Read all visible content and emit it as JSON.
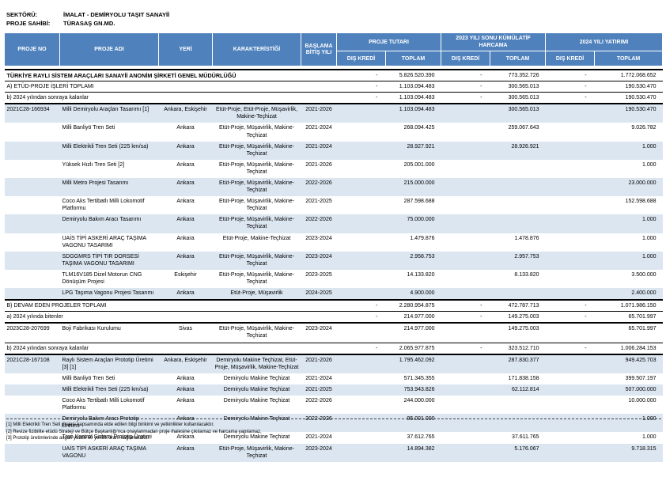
{
  "page": {
    "sector_label": "SEKTÖRÜ:",
    "sector_value": "İMALAT - DEMİRYOLU TAŞIT SANAYİİ",
    "owner_label": "PROJE SAHİBİ:",
    "owner_value": "TÜRASAŞ GN.MD."
  },
  "colors": {
    "header_bg": "#4F81BD",
    "stripe_bg": "#DCE6F1",
    "header_text": "#FFFFFF"
  },
  "table": {
    "columns": {
      "proje_no": "PROJE NO",
      "proje_adi": "PROJE ADI",
      "yeri": "YERİ",
      "karakteristigi": "KARAKTERİSTİĞİ",
      "baslama_bitis_yili": "BAŞLAMA BİTİŞ YILI",
      "groups": [
        {
          "label": "PROJE TUTARI",
          "sub": [
            "DIŞ KREDİ",
            "TOPLAM"
          ]
        },
        {
          "label": "2023 YILI SONU KÜMÜLATİF HARCAMA",
          "sub": [
            "DIŞ KREDİ",
            "TOPLAM"
          ]
        },
        {
          "label": "2024 YILI YATIRIMI",
          "sub": [
            "DIŞ KREDİ",
            "TOPLAM"
          ]
        }
      ]
    },
    "rows": [
      {
        "type": "company",
        "name": "TÜRKİYE RAYLI SİSTEM ARAÇLARI SANAYİİ ANONİM ŞİRKETİ GENEL MÜDÜRLÜĞÜ",
        "values": [
          "-",
          "5.826.520.390",
          "-",
          "773.352.726",
          "-",
          "1.772.068.652"
        ],
        "bt": 2,
        "bb": 1
      },
      {
        "type": "section",
        "name": "A) ETÜD-PROJE İŞLERİ TOPLAMI",
        "values": [
          "-",
          "1.103.094.483",
          "-",
          "300.565.013",
          "-",
          "190.530.470"
        ],
        "bb": 1
      },
      {
        "type": "subsection",
        "name": "b) 2024 yılından sonraya kalanlar",
        "values": [
          "-",
          "1.103.094.483",
          "-",
          "300.565.013",
          "-",
          "190.530.470"
        ],
        "bb": 2
      },
      {
        "type": "project",
        "no": "2021C28-166934",
        "name": "Milli Demiryolu Araçları Tasarımı  [1]",
        "place": "Ankara,  Eskişehir",
        "character": "Etüt-Proje, Etüt-Proje, Müşavirlik, Makine-Teçhizat",
        "years": "2021-2026",
        "values": [
          "",
          "1.103.094.483",
          "",
          "300.565.013",
          "",
          "190.530.470"
        ],
        "stripe": true
      },
      {
        "type": "project",
        "no": "",
        "name": "Milli Banliyö Tren Seti",
        "place": "Ankara",
        "character": "Etüt-Proje, Müşavirlik, Makine-Teçhizat",
        "years": "2021-2024",
        "values": [
          "",
          "268.094.425",
          "",
          "259.067.643",
          "",
          "9.026.782"
        ],
        "stripe": false
      },
      {
        "type": "project",
        "no": "",
        "name": "Milli Elektrikli Tren Seti (225 km/sa)",
        "place": "Ankara",
        "character": "Etüt-Proje, Müşavirlik, Makine-Teçhizat",
        "years": "2021-2024",
        "values": [
          "",
          "28.927.921",
          "",
          "28.926.921",
          "",
          "1.000"
        ],
        "stripe": true
      },
      {
        "type": "project",
        "no": "",
        "name": "Yüksek Hızlı Tren Seti [2]",
        "place": "Ankara",
        "character": "Etüt-Proje, Müşavirlik, Makine-Teçhizat",
        "years": "2021-2026",
        "values": [
          "",
          "205.001.000",
          "",
          "",
          "",
          "1.000"
        ],
        "stripe": false
      },
      {
        "type": "project",
        "no": "",
        "name": "Milli Metro Projesi Tasarımı",
        "place": "Ankara",
        "character": "Etüt-Proje, Müşavirlik, Makine-Teçhizat",
        "years": "2022-2026",
        "values": [
          "",
          "215.000.000",
          "",
          "",
          "",
          "23.000.000"
        ],
        "stripe": true
      },
      {
        "type": "project",
        "no": "",
        "name": "Coco Aks Tertibatlı Milli Lokomotif Platformu",
        "place": "Ankara",
        "character": "Etüt-Proje, Müşavirlik, Makine-Teçhizat",
        "years": "2021-2025",
        "values": [
          "",
          "287.598.688",
          "",
          "",
          "",
          "152.598.688"
        ],
        "stripe": false
      },
      {
        "type": "project",
        "no": "",
        "name": "Demiryolu Bakım Aracı Tasarımı",
        "place": "Ankara",
        "character": "Etüt-Proje, Müşavirlik, Makine-Teçhizat",
        "years": "2022-2026",
        "values": [
          "",
          "75.000.000",
          "",
          "",
          "",
          "1.000"
        ],
        "stripe": true
      },
      {
        "type": "project",
        "no": "",
        "name": "UAİS TİPİ ASKERİ ARAÇ TAŞIMA VAGONU TASARIMI",
        "place": "Ankara",
        "character": "Etüt-Proje, Makine-Teçhizat",
        "years": "2023-2024",
        "values": [
          "",
          "1.479.876",
          "",
          "1.478.876",
          "",
          "1.000"
        ],
        "stripe": false
      },
      {
        "type": "project",
        "no": "",
        "name": "SDGGMRS TİPİ TIR DORSESİ TAŞIMA VAGONU TASARIMI",
        "place": "Ankara",
        "character": "Etüt-Proje, Müşavirlik, Makine-Teçhizat",
        "years": "2023-2024",
        "values": [
          "",
          "2.958.753",
          "",
          "2.957.753",
          "",
          "1.000"
        ],
        "stripe": true
      },
      {
        "type": "project",
        "no": "",
        "name": "TLM16V185 Dizel Motorun CNG Dönüşüm Projesi",
        "place": "Eskişehir",
        "character": "Etüt-Proje, Müşavirlik, Makine-Teçhizat",
        "years": "2023-2025",
        "values": [
          "",
          "14.133.820",
          "",
          "8.133.820",
          "",
          "3.500.000"
        ],
        "stripe": false
      },
      {
        "type": "project",
        "no": "",
        "name": "LPG Taşıma Vagonu Projesi Tasarımı",
        "place": "Ankara",
        "character": "Etüt-Proje, Müşavirlik",
        "years": "2024-2025",
        "values": [
          "",
          "4.900.000",
          "",
          "",
          "",
          "2.400.000"
        ],
        "stripe": true
      },
      {
        "type": "section",
        "name": "B) DEVAM EDEN PROJELER TOPLAMI",
        "values": [
          "-",
          "2.280.954.875",
          "-",
          "472.787.713",
          "-",
          "1.071.986.150"
        ],
        "bt": 2,
        "bb": 1
      },
      {
        "type": "subsection",
        "name": "a) 2024 yılında bitenler",
        "values": [
          "-",
          "214.977.000",
          "-",
          "149.275.003",
          "-",
          "65.701.997"
        ],
        "bb": 2
      },
      {
        "type": "project",
        "no": "2023C28-207699",
        "name": "Boji Fabrikası Kurulumu",
        "place": "Sivas",
        "character": "Etüt-Proje, Müşavirlik, Makine-Teçhizat",
        "years": "2023-2024",
        "values": [
          "",
          "214.977.000",
          "",
          "149.275.003",
          "",
          "65.701.997"
        ],
        "stripe": false
      },
      {
        "type": "subsection",
        "name": "b) 2024 yılından sonraya kalanlar",
        "values": [
          "-",
          "2.065.977.875",
          "-",
          "323.512.710",
          "-",
          "1.006.284.153"
        ],
        "bt": 1,
        "bb": 2
      },
      {
        "type": "project",
        "no": "2021C28-167108",
        "name": "Raylı Sistem Araçları Prototip Üretimi  [3] [1]",
        "place": "Ankara,  Eskişehir",
        "character": "Demiryolu Makine Teçhizat, Etüt-Proje, Müşavirlik, Makine-Teçhizat",
        "years": "2021-2026",
        "values": [
          "",
          "1.795.462.092",
          "",
          "287.830.377",
          "",
          "949.425.703"
        ],
        "stripe": true
      },
      {
        "type": "project",
        "no": "",
        "name": "Milli Banliyö Tren Seti",
        "place": "Ankara",
        "character": "Demiryolu Makine Teçhizat",
        "years": "2021-2024",
        "values": [
          "",
          "571.345.355",
          "",
          "171.838.158",
          "",
          "399.507.197"
        ],
        "stripe": false
      },
      {
        "type": "project",
        "no": "",
        "name": "Milli Elektrikli Tren Seti (225 km/sa)",
        "place": "Ankara",
        "character": "Demiryolu Makine Teçhizat",
        "years": "2021-2025",
        "values": [
          "",
          "753.943.826",
          "",
          "62.112.814",
          "",
          "507.000.000"
        ],
        "stripe": true
      },
      {
        "type": "project",
        "no": "",
        "name": "Coco Aks Tertibatlı Milli Lokomotif Platformu",
        "place": "Ankara",
        "character": "Demiryolu Makine Teçhizat",
        "years": "2022-2026",
        "values": [
          "",
          "244.000.000",
          "",
          "",
          "",
          "10.000.000"
        ],
        "stripe": false
      },
      {
        "type": "project",
        "no": "",
        "name": "Demiryolu Bakım Aracı Prototip Üretimi",
        "place": "Ankara",
        "character": "Demiryolu Makine Teçhizat",
        "years": "2022-2026",
        "values": [
          "",
          "95.001.000",
          "",
          "",
          "",
          "1.000"
        ],
        "stripe": true
      },
      {
        "type": "project",
        "no": "",
        "name": "Tren Kontrol Sistemi Prototip Üretimi",
        "place": "Ankara",
        "character": "Demiryolu Makine Teçhizat",
        "years": "2021-2024",
        "values": [
          "",
          "37.612.765",
          "",
          "37.611.765",
          "",
          "1.000"
        ],
        "stripe": false
      },
      {
        "type": "project",
        "no": "",
        "name": "UAİS TİPİ ASKERİ ARAÇ TAŞIMA VAGONU",
        "place": "Ankara",
        "character": "Etüt-Proje, Müşavirlik, Makine-Teçhizat",
        "years": "2023-2024",
        "values": [
          "",
          "14.894.382",
          "",
          "5.176.067",
          "",
          "9.718.315"
        ],
        "stripe": true
      }
    ]
  },
  "footnotes": [
    "[1] Milli Elektrikli Tren Seti projesi kapsamında elde edilen bilgi birikimi ve yetkinlikler kullanılacaktır.",
    "[2] Revize fizibilite etüdü Strateji ve Bütçe Başkanlığı'nca onaylanmadan proje ihalesine çıkılamaz ve harcama yapılamaz.",
    "[3] Prototip üretimlerinde asgari yüzde 60 yerlilik oranı sağlanacaktır."
  ]
}
